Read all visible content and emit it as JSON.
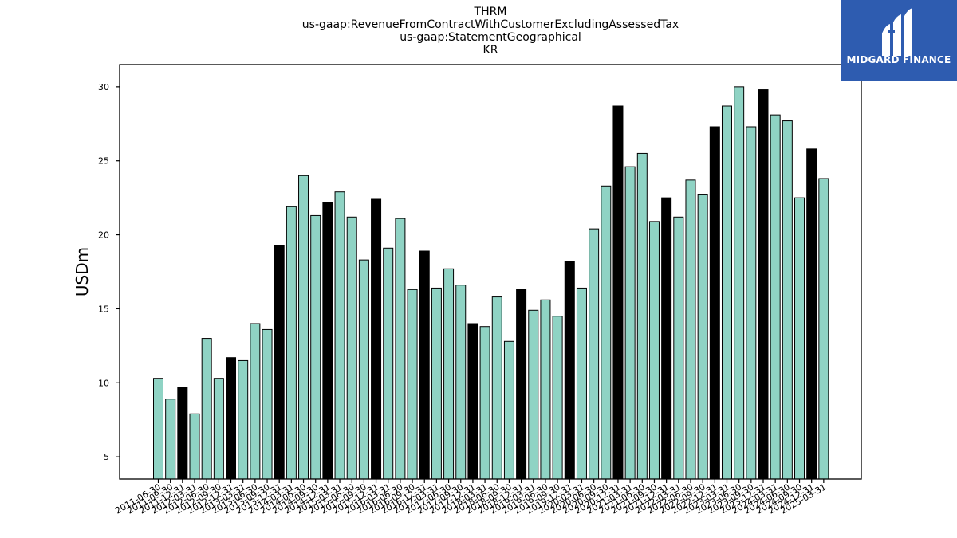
{
  "title_lines": [
    "THRM",
    "us-gaap:RevenueFromContractWithCustomerExcludingAssessedTax",
    "us-gaap:StatementGeographical",
    "KR"
  ],
  "logo": {
    "text": "MIDGARD FINANCE",
    "background": "#2e5cb0",
    "icon": "midgard-logo-icon"
  },
  "chart_data": {
    "type": "bar",
    "ylabel": "USDm",
    "xlabel": "",
    "ylim": [
      3.5,
      31.5
    ],
    "yticks": [
      5,
      10,
      15,
      20,
      25,
      30
    ],
    "colors": {
      "quarter": "#8fd3c4",
      "q4": "#000000",
      "edge": "#000000"
    },
    "categories": [
      "2011-06-30",
      "2011-09-30",
      "2011-12-31",
      "2012-03-31",
      "2012-06-30",
      "2012-09-30",
      "2012-12-31",
      "2013-03-31",
      "2013-06-30",
      "2013-09-30",
      "2013-12-31",
      "2014-03-31",
      "2014-06-30",
      "2014-09-30",
      "2014-12-31",
      "2015-03-31",
      "2015-06-30",
      "2015-09-30",
      "2015-12-31",
      "2016-03-31",
      "2016-06-30",
      "2016-09-30",
      "2016-12-31",
      "2017-03-31",
      "2017-06-30",
      "2017-09-30",
      "2017-12-31",
      "2018-03-31",
      "2018-06-30",
      "2018-09-30",
      "2018-12-31",
      "2019-03-31",
      "2019-06-30",
      "2019-09-30",
      "2019-12-31",
      "2020-03-31",
      "2020-06-30",
      "2020-09-30",
      "2020-12-31",
      "2021-03-31",
      "2021-06-30",
      "2021-09-30",
      "2021-12-31",
      "2022-03-31",
      "2022-06-30",
      "2022-09-30",
      "2022-12-31",
      "2023-03-31",
      "2023-06-30",
      "2023-09-30",
      "2023-12-31",
      "2024-03-31",
      "2024-06-30",
      "2024-09-30",
      "2024-12-31",
      "2025-03-31"
    ],
    "tick_labels": [
      "2011-06-30",
      "2011-09-30",
      "2011-12-31",
      "2012-03-31",
      "2012-06-30",
      "2012-09-30",
      "2012-12-31",
      "2013-03-31",
      "2013-06-30",
      "2013-09-30",
      "2013-12-31",
      "2014-03-31",
      "2014-06-30",
      "2014-09-30",
      "2014-12-31",
      "2015-03-31",
      "2015-06-30",
      "2015-09-30",
      "2015-12-31",
      "2016-03-31",
      "2016-06-30",
      "2016-09-30",
      "2016-12-31",
      "2017-03-31",
      "2017-06-30",
      "2017-09-30",
      "2017-12-31",
      "2018-03-31",
      "2018-06-30",
      "2018-09-30",
      "2018-12-31",
      "2019-03-31",
      "2019-06-30",
      "2019-09-30",
      "2019-12-31",
      "2020-03-31",
      "2020-06-30",
      "2020-09-30",
      "2020-12-31",
      "2021-03-31",
      "2021-06-30",
      "2021-09-30",
      "2021-12-31",
      "2022-03-31",
      "2022-06-30",
      "2022-09-30",
      "2022-12-31",
      "2023-03-31",
      "2023-06-30",
      "2023-09-30",
      "2023-12-31",
      "2024-03-31",
      "2024-06-30",
      "2024-09-30",
      "2024-12-31",
      "2025-03-31"
    ],
    "values": [
      10.3,
      8.9,
      9.7,
      7.9,
      13.0,
      10.3,
      11.7,
      11.5,
      14.0,
      13.6,
      19.3,
      21.9,
      24.0,
      21.3,
      22.2,
      22.9,
      21.2,
      18.3,
      22.4,
      19.1,
      21.1,
      16.3,
      18.9,
      16.4,
      17.7,
      16.6,
      14.0,
      13.8,
      15.8,
      12.8,
      16.3,
      14.9,
      15.6,
      14.5,
      18.2,
      16.4,
      20.4,
      23.3,
      28.7,
      24.6,
      25.5,
      20.9,
      22.5,
      21.2,
      23.7,
      22.7,
      27.3,
      28.7,
      30.0,
      27.3,
      29.8,
      28.1,
      27.7,
      22.5,
      25.8,
      23.8
    ],
    "highlight": [
      false,
      false,
      true,
      false,
      false,
      false,
      true,
      false,
      false,
      false,
      true,
      false,
      false,
      false,
      true,
      false,
      false,
      false,
      true,
      false,
      false,
      false,
      true,
      false,
      false,
      false,
      true,
      false,
      false,
      false,
      true,
      false,
      false,
      false,
      true,
      false,
      false,
      false,
      true,
      false,
      false,
      false,
      true,
      false,
      false,
      false,
      true,
      false,
      false,
      false,
      true,
      false,
      false,
      false,
      true,
      false
    ]
  }
}
